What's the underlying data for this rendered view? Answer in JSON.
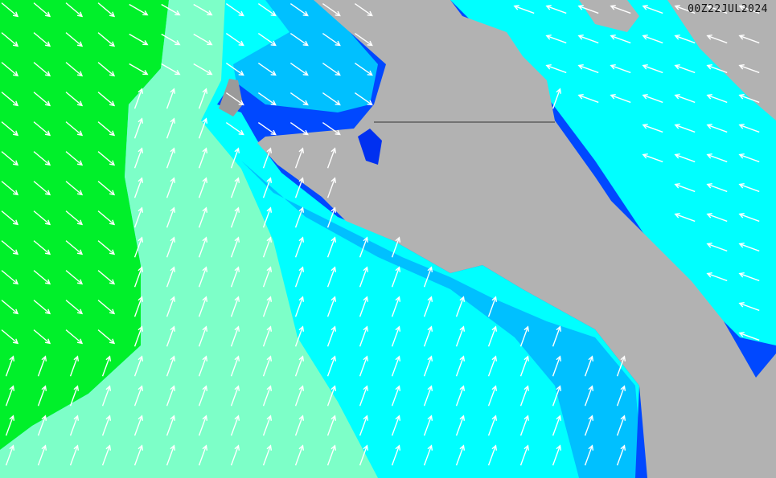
{
  "timestamp": "00Z22JUL2024",
  "colors": {
    "land": "#b2b2b2",
    "green": "#00f02a",
    "aquamarine": "#7dffc8",
    "cyan": "#00ffff",
    "sky": "#00c0ff",
    "blue": "#0048ff",
    "deep_blue": "#0010e0",
    "arrow": "#ffffff"
  },
  "arrow_icon": "wind-direction-arrow"
}
